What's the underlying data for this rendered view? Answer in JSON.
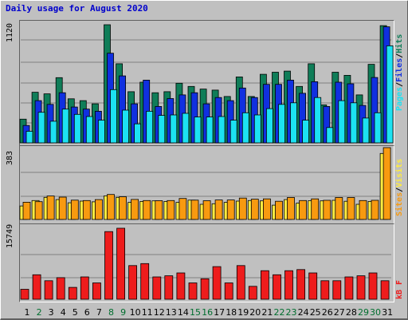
{
  "title": "Daily usage for August 2020",
  "colors": {
    "hits": "#0f7d58",
    "files": "#1030e0",
    "pages": "#1ce2f2",
    "visits": "#ffec40",
    "sites": "#f89a10",
    "kbytes": "#ee1c1c",
    "day_normal": "#000000",
    "day_weekend": "#006e2e"
  },
  "legend": {
    "top": [
      "Pages",
      "/",
      "Files",
      "/",
      "Hits"
    ],
    "middle": [
      "Sites",
      "/",
      "Visits"
    ],
    "bottom": [
      "kB F"
    ]
  },
  "chart_data": [
    {
      "type": "bar",
      "title": "",
      "ymax_label": "1120",
      "ylim": [
        0,
        1120
      ],
      "categories": [
        "1",
        "2",
        "3",
        "4",
        "5",
        "6",
        "7",
        "8",
        "9",
        "10",
        "11",
        "12",
        "13",
        "14",
        "15",
        "16",
        "17",
        "18",
        "19",
        "20",
        "21",
        "22",
        "23",
        "24",
        "25",
        "26",
        "27",
        "28",
        "29",
        "30",
        "31"
      ],
      "series": [
        {
          "name": "Hits",
          "values": [
            225,
            480,
            465,
            618,
            418,
            400,
            370,
            1120,
            750,
            485,
            575,
            475,
            485,
            565,
            535,
            510,
            500,
            440,
            625,
            440,
            650,
            670,
            680,
            535,
            750,
            360,
            670,
            640,
            455,
            745,
            1112
          ]
        },
        {
          "name": "Files",
          "values": [
            165,
            400,
            365,
            475,
            340,
            320,
            300,
            850,
            635,
            370,
            595,
            345,
            420,
            455,
            475,
            370,
            430,
            400,
            520,
            430,
            555,
            555,
            595,
            470,
            580,
            345,
            575,
            560,
            355,
            620,
            1100
          ]
        },
        {
          "name": "Pages",
          "values": [
            110,
            290,
            205,
            320,
            270,
            250,
            215,
            505,
            310,
            180,
            300,
            260,
            265,
            280,
            245,
            245,
            250,
            215,
            285,
            265,
            325,
            365,
            380,
            215,
            430,
            145,
            400,
            380,
            235,
            285,
            920
          ]
        }
      ]
    },
    {
      "type": "bar",
      "title": "",
      "ymax_label": "383",
      "ylim": [
        0,
        383
      ],
      "categories": [
        "1",
        "2",
        "3",
        "4",
        "5",
        "6",
        "7",
        "8",
        "9",
        "10",
        "11",
        "12",
        "13",
        "14",
        "15",
        "16",
        "17",
        "18",
        "19",
        "20",
        "21",
        "22",
        "23",
        "24",
        "25",
        "26",
        "27",
        "28",
        "29",
        "30",
        "31"
      ],
      "series": [
        {
          "name": "Visits",
          "values": [
            72,
            101,
            118,
            106,
            89,
            98,
            94,
            126,
            118,
            91,
            96,
            99,
            96,
            91,
            103,
            81,
            84,
            91,
            98,
            101,
            99,
            76,
            106,
            87,
            100,
            99,
            102,
            97,
            81,
            96,
            352
          ]
        },
        {
          "name": "Sites",
          "values": [
            92,
            95,
            125,
            119,
            103,
            101,
            106,
            133,
            121,
            107,
            101,
            100,
            101,
            112,
            103,
            100,
            104,
            104,
            114,
            108,
            110,
            97,
            117,
            101,
            110,
            102,
            117,
            117,
            101,
            102,
            383
          ]
        }
      ]
    },
    {
      "type": "bar",
      "title": "",
      "ymax_label": "15749",
      "ylim": [
        0,
        15749
      ],
      "categories": [
        "1",
        "2",
        "3",
        "4",
        "5",
        "6",
        "7",
        "8",
        "9",
        "10",
        "11",
        "12",
        "13",
        "14",
        "15",
        "16",
        "17",
        "18",
        "19",
        "20",
        "21",
        "22",
        "23",
        "24",
        "25",
        "26",
        "27",
        "28",
        "29",
        "30",
        "31"
      ],
      "series": [
        {
          "name": "kB F",
          "values": [
            2214,
            5439,
            4097,
            4798,
            2642,
            4954,
            3632,
            15000,
            15749,
            7473,
            7907,
            4954,
            5206,
            5835,
            3632,
            4544,
            7229,
            3632,
            7473,
            2863,
            6342,
            5439,
            6342,
            6580,
            5835,
            4097,
            4097,
            4954,
            5206,
            5835,
            4097
          ]
        }
      ]
    }
  ],
  "weekend_days": [
    "2",
    "8",
    "9",
    "15",
    "16",
    "22",
    "23",
    "29",
    "30"
  ]
}
